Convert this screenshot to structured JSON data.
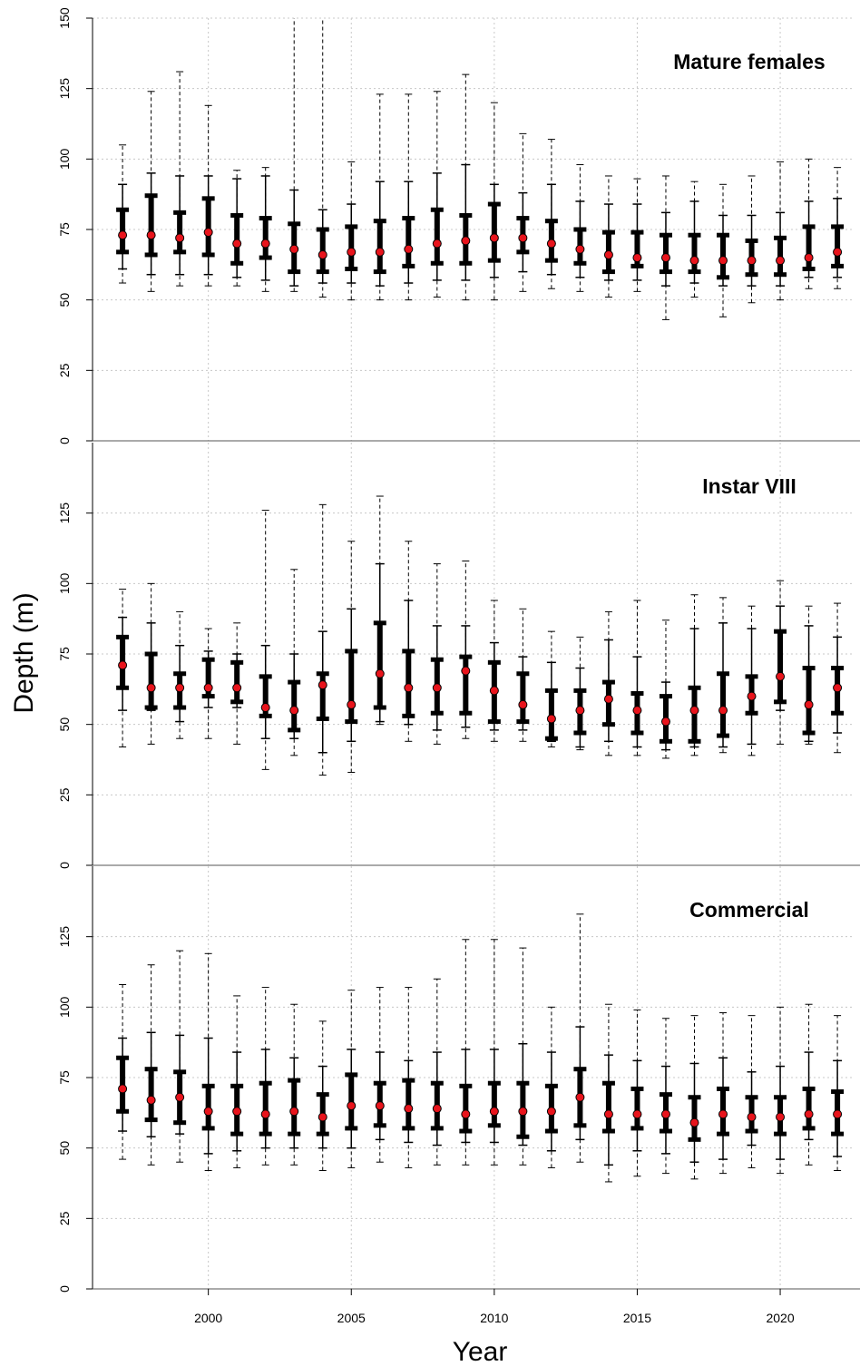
{
  "chart_data": [
    {
      "type": "range",
      "title": "Mature females",
      "x": [
        1997,
        1998,
        1999,
        2000,
        2001,
        2002,
        2003,
        2004,
        2005,
        2006,
        2007,
        2008,
        2009,
        2010,
        2011,
        2012,
        2013,
        2014,
        2015,
        2016,
        2017,
        2018,
        2019,
        2020,
        2021,
        2022
      ],
      "max": [
        105,
        124,
        131,
        119,
        96,
        97,
        160,
        165,
        99,
        123,
        123,
        124,
        130,
        120,
        109,
        107,
        98,
        94,
        93,
        94,
        92,
        91,
        94,
        99,
        100,
        97
      ],
      "p90": [
        91,
        95,
        94,
        94,
        93,
        94,
        89,
        82,
        84,
        92,
        92,
        95,
        98,
        91,
        88,
        91,
        85,
        84,
        84,
        81,
        85,
        80,
        80,
        81,
        85,
        86
      ],
      "q3": [
        82,
        87,
        81,
        86,
        80,
        79,
        77,
        75,
        76,
        78,
        79,
        82,
        80,
        84,
        79,
        78,
        75,
        74,
        74,
        73,
        73,
        73,
        71,
        72,
        76,
        76
      ],
      "median": [
        73,
        73,
        72,
        74,
        70,
        70,
        68,
        66,
        67,
        67,
        68,
        70,
        71,
        72,
        72,
        70,
        68,
        66,
        65,
        65,
        64,
        64,
        64,
        64,
        65,
        67
      ],
      "q1": [
        67,
        66,
        67,
        66,
        63,
        65,
        60,
        60,
        61,
        60,
        62,
        63,
        63,
        64,
        67,
        64,
        63,
        60,
        62,
        60,
        60,
        58,
        59,
        59,
        61,
        62
      ],
      "p10": [
        61,
        59,
        59,
        59,
        58,
        57,
        55,
        56,
        56,
        55,
        56,
        57,
        57,
        58,
        60,
        59,
        58,
        57,
        57,
        55,
        56,
        55,
        55,
        55,
        58,
        58
      ],
      "min": [
        56,
        53,
        55,
        55,
        55,
        53,
        53,
        51,
        50,
        50,
        50,
        51,
        50,
        50,
        53,
        54,
        53,
        51,
        53,
        43,
        51,
        44,
        49,
        50,
        54,
        54
      ],
      "xlim": [
        1995.95,
        2022.6
      ],
      "xticks": [
        2000,
        2005,
        2010,
        2015,
        2020
      ],
      "ylim": [
        0,
        150
      ],
      "yticks": [
        0,
        25,
        50,
        75,
        100,
        125,
        150
      ],
      "grid": true,
      "median_color": "#e8141c"
    },
    {
      "type": "range",
      "title": "Instar VIII",
      "ylabel": "Depth (m)",
      "x": [
        1997,
        1998,
        1999,
        2000,
        2001,
        2002,
        2003,
        2004,
        2005,
        2006,
        2007,
        2008,
        2009,
        2010,
        2011,
        2012,
        2013,
        2014,
        2015,
        2016,
        2017,
        2018,
        2019,
        2020,
        2021,
        2022
      ],
      "max": [
        98,
        100,
        90,
        84,
        86,
        126,
        105,
        128,
        115,
        131,
        115,
        107,
        108,
        94,
        91,
        83,
        81,
        90,
        94,
        87,
        96,
        95,
        92,
        101,
        92,
        93
      ],
      "p90": [
        88,
        86,
        78,
        76,
        75,
        78,
        75,
        83,
        91,
        107,
        94,
        85,
        85,
        79,
        74,
        72,
        70,
        80,
        74,
        65,
        84,
        86,
        84,
        92,
        85,
        81
      ],
      "q3": [
        81,
        75,
        68,
        73,
        72,
        67,
        65,
        68,
        76,
        86,
        76,
        73,
        74,
        72,
        68,
        62,
        62,
        65,
        61,
        60,
        63,
        68,
        67,
        83,
        70,
        70
      ],
      "median": [
        71,
        63,
        63,
        63,
        63,
        56,
        55,
        64,
        57,
        68,
        63,
        63,
        69,
        62,
        57,
        52,
        55,
        59,
        55,
        51,
        55,
        55,
        60,
        67,
        57,
        63
      ],
      "q1": [
        63,
        56,
        56,
        60,
        58,
        53,
        48,
        52,
        51,
        56,
        53,
        54,
        54,
        51,
        51,
        45,
        47,
        50,
        47,
        44,
        44,
        46,
        54,
        58,
        47,
        54
      ],
      "p10": [
        55,
        55,
        51,
        56,
        56,
        45,
        45,
        40,
        44,
        51,
        50,
        48,
        49,
        48,
        48,
        44,
        42,
        44,
        42,
        41,
        42,
        42,
        43,
        55,
        44,
        47
      ],
      "min": [
        42,
        43,
        45,
        45,
        43,
        34,
        39,
        32,
        33,
        50,
        44,
        43,
        45,
        44,
        44,
        42,
        41,
        39,
        39,
        38,
        39,
        40,
        39,
        43,
        43,
        40
      ],
      "xlim": [
        1995.95,
        2022.6
      ],
      "xticks": [
        2000,
        2005,
        2010,
        2015,
        2020
      ],
      "ylim": [
        0,
        150
      ],
      "yticks": [
        0,
        25,
        50,
        75,
        100,
        125
      ],
      "grid": true,
      "median_color": "#e8141c"
    },
    {
      "type": "range",
      "title": "Commercial",
      "xlabel": "Year",
      "x": [
        1997,
        1998,
        1999,
        2000,
        2001,
        2002,
        2003,
        2004,
        2005,
        2006,
        2007,
        2008,
        2009,
        2010,
        2011,
        2012,
        2013,
        2014,
        2015,
        2016,
        2017,
        2018,
        2019,
        2020,
        2021,
        2022
      ],
      "max": [
        108,
        115,
        120,
        119,
        104,
        107,
        101,
        95,
        106,
        107,
        107,
        110,
        124,
        124,
        121,
        100,
        133,
        101,
        99,
        96,
        97,
        98,
        97,
        100,
        101,
        97
      ],
      "p90": [
        89,
        91,
        90,
        89,
        84,
        85,
        82,
        79,
        85,
        84,
        81,
        84,
        85,
        85,
        87,
        84,
        93,
        83,
        81,
        79,
        80,
        82,
        77,
        79,
        84,
        81
      ],
      "q3": [
        82,
        78,
        77,
        72,
        72,
        73,
        74,
        69,
        76,
        73,
        74,
        73,
        72,
        73,
        73,
        72,
        78,
        73,
        71,
        69,
        68,
        71,
        68,
        68,
        71,
        70
      ],
      "median": [
        71,
        67,
        68,
        63,
        63,
        62,
        63,
        61,
        65,
        65,
        64,
        64,
        62,
        63,
        63,
        63,
        68,
        62,
        62,
        62,
        59,
        62,
        61,
        61,
        62,
        62
      ],
      "q1": [
        63,
        60,
        59,
        57,
        55,
        55,
        55,
        55,
        57,
        58,
        57,
        57,
        56,
        58,
        54,
        56,
        58,
        56,
        57,
        56,
        53,
        55,
        56,
        55,
        57,
        55
      ],
      "p10": [
        56,
        54,
        55,
        48,
        49,
        50,
        50,
        50,
        50,
        53,
        52,
        51,
        52,
        52,
        51,
        49,
        53,
        44,
        49,
        48,
        45,
        46,
        51,
        46,
        53,
        47
      ],
      "min": [
        46,
        44,
        45,
        42,
        43,
        44,
        44,
        42,
        43,
        45,
        43,
        44,
        44,
        44,
        44,
        43,
        45,
        38,
        40,
        41,
        39,
        41,
        43,
        41,
        44,
        42
      ],
      "xlim": [
        1995.95,
        2022.6
      ],
      "xticks": [
        2000,
        2005,
        2010,
        2015,
        2020
      ],
      "xtick_labels": true,
      "ylim": [
        0,
        150
      ],
      "yticks": [
        0,
        25,
        50,
        75,
        100,
        125
      ],
      "grid": true,
      "median_color": "#e8141c"
    }
  ]
}
